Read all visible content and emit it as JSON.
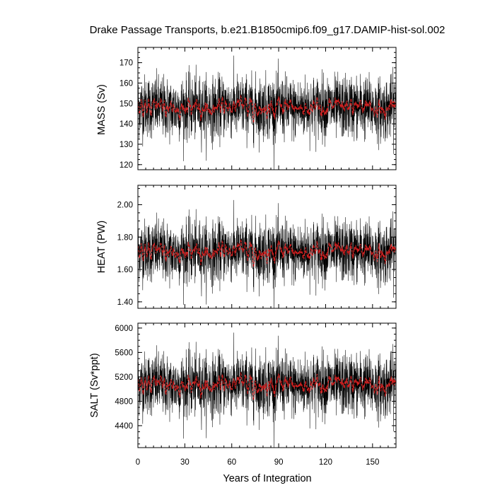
{
  "chart_data": {
    "type": "line",
    "title": "Drake Passage Transports, b.e21.B1850cmip6.f09_g17.DAMIP-hist-sol.002",
    "xlabel": "Years of Integration",
    "xlim": [
      0,
      165
    ],
    "xticks": [
      0,
      30,
      60,
      90,
      120,
      150
    ],
    "colors": {
      "raw": "#000000",
      "smoothed": "#d02020"
    },
    "panels": [
      {
        "id": "mass",
        "ylabel": "MASS (Sv)",
        "ylim": [
          117.5,
          177.5
        ],
        "yticks": [
          120,
          130,
          140,
          150,
          160,
          170
        ],
        "ytick_labels": [
          "120",
          "130",
          "140",
          "150",
          "160",
          "170"
        ],
        "mean": 148,
        "std": 7.6,
        "smooth_amp": 2.2
      },
      {
        "id": "heat",
        "ylabel": "HEAT (PW)",
        "ylim": [
          1.36,
          2.12
        ],
        "yticks": [
          1.4,
          1.6,
          1.8,
          2.0
        ],
        "ytick_labels": [
          "1.40",
          "1.60",
          "1.80",
          "2.00"
        ],
        "mean": 1.71,
        "std": 0.095,
        "smooth_amp": 0.03
      },
      {
        "id": "salt",
        "ylabel": "SALT (Sv*ppt)",
        "ylim": [
          4040,
          6080
        ],
        "yticks": [
          4400,
          4800,
          5200,
          5600,
          6000
        ],
        "ytick_labels": [
          "4400",
          "4800",
          "5200",
          "5600",
          "6000"
        ],
        "mean": 5070,
        "std": 255,
        "smooth_amp": 75
      }
    ]
  }
}
